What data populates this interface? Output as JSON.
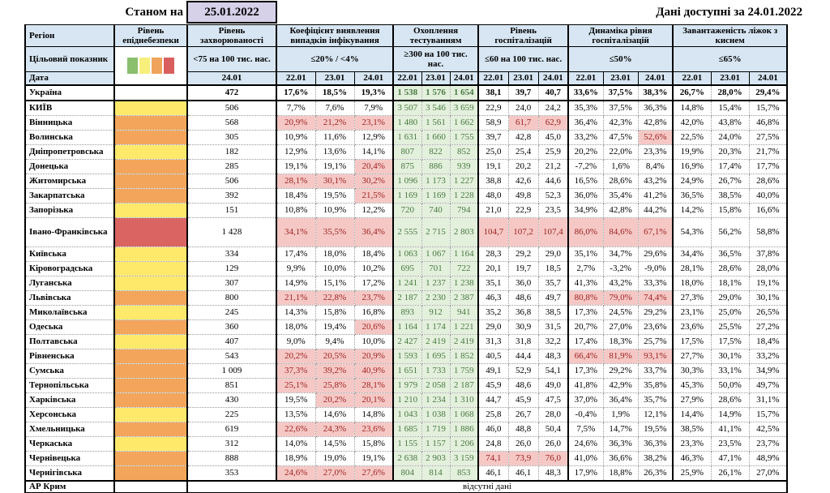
{
  "topbar": {
    "as_of_label": "Станом на",
    "as_of_date": "25.01.2022",
    "available_label": "Дані доступні за",
    "available_date": "24.01.2022"
  },
  "header": {
    "region": "Регіон",
    "target_row_label": "Цільовий показник",
    "date_row_label": "Дата",
    "epidemic_title": "Рівень епіднебезпеки",
    "morbidity": {
      "title": "Рівень захворюваності",
      "target": "<75 на 100 тис. нас.",
      "date": "24.01"
    },
    "groups": [
      {
        "key": "coef",
        "title": "Коефіцієнт виявлення випадків інфікування",
        "target": "≤20% / <4%"
      },
      {
        "key": "test",
        "title": "Охоплення тестуванням",
        "target": "≥300 на 100 тис. нас."
      },
      {
        "key": "hosp",
        "title": "Рівень госпіталізацій",
        "target": "≤60 на 100 тис. нас."
      },
      {
        "key": "dyn",
        "title": "Динаміка рівня госпіталізацій",
        "target": "≤50%"
      },
      {
        "key": "beds",
        "title": "Завантаженість ліжок з киснем",
        "target": "≤65%"
      }
    ],
    "dates": [
      "22.01",
      "23.01",
      "24.01"
    ]
  },
  "legend_colors": [
    "#8abf6e",
    "#f6ef7c",
    "#f0a35b",
    "#d95f5f"
  ],
  "level_colors": {
    "yellow": "#ffe96b",
    "orange": "#f3a65b",
    "red": "#d96461",
    "none": "#ffffff"
  },
  "no_data_text": "відсутні дані",
  "rows": [
    {
      "region": "Україна",
      "level": "none",
      "bold": true,
      "morbidity": "472",
      "coef": [
        "17,6%",
        "18,5%",
        "19,3%"
      ],
      "coef_hl": [
        0,
        0,
        0
      ],
      "test": [
        "1 538",
        "1 576",
        "1 654"
      ],
      "hosp": [
        "38,1",
        "39,7",
        "40,7"
      ],
      "hosp_hl": [
        0,
        0,
        0
      ],
      "dyn": [
        "33,6%",
        "37,5%",
        "38,3%"
      ],
      "dyn_hl": [
        0,
        0,
        0
      ],
      "beds": [
        "26,7%",
        "28,0%",
        "29,4%"
      ]
    },
    {
      "region": "КИЇВ",
      "level": "yellow",
      "morbidity": "506",
      "coef": [
        "7,7%",
        "7,6%",
        "7,9%"
      ],
      "coef_hl": [
        0,
        0,
        0
      ],
      "test": [
        "3 507",
        "3 546",
        "3 659"
      ],
      "hosp": [
        "22,9",
        "24,0",
        "24,2"
      ],
      "hosp_hl": [
        0,
        0,
        0
      ],
      "dyn": [
        "35,3%",
        "37,5%",
        "36,3%"
      ],
      "dyn_hl": [
        0,
        0,
        0
      ],
      "beds": [
        "14,8%",
        "15,4%",
        "15,7%"
      ]
    },
    {
      "region": "Вінницька",
      "level": "orange",
      "morbidity": "568",
      "coef": [
        "20,9%",
        "21,2%",
        "23,1%"
      ],
      "coef_hl": [
        1,
        1,
        1
      ],
      "test": [
        "1 480",
        "1 561",
        "1 662"
      ],
      "hosp": [
        "58,9",
        "61,7",
        "62,9"
      ],
      "hosp_hl": [
        0,
        1,
        1
      ],
      "dyn": [
        "36,4%",
        "42,3%",
        "42,8%"
      ],
      "dyn_hl": [
        0,
        0,
        0
      ],
      "beds": [
        "42,0%",
        "43,8%",
        "46,8%"
      ]
    },
    {
      "region": "Волинська",
      "level": "orange",
      "morbidity": "305",
      "coef": [
        "10,9%",
        "11,6%",
        "12,9%"
      ],
      "coef_hl": [
        0,
        0,
        0
      ],
      "test": [
        "1 631",
        "1 660",
        "1 755"
      ],
      "hosp": [
        "39,7",
        "42,8",
        "45,0"
      ],
      "hosp_hl": [
        0,
        0,
        0
      ],
      "dyn": [
        "33,2%",
        "47,5%",
        "52,6%"
      ],
      "dyn_hl": [
        0,
        0,
        1
      ],
      "beds": [
        "22,5%",
        "24,0%",
        "27,5%"
      ]
    },
    {
      "region": "Дніпропетровська",
      "level": "yellow",
      "morbidity": "182",
      "coef": [
        "12,9%",
        "13,6%",
        "14,1%"
      ],
      "coef_hl": [
        0,
        0,
        0
      ],
      "test": [
        "807",
        "822",
        "852"
      ],
      "hosp": [
        "25,0",
        "25,4",
        "25,9"
      ],
      "hosp_hl": [
        0,
        0,
        0
      ],
      "dyn": [
        "20,2%",
        "22,0%",
        "23,3%"
      ],
      "dyn_hl": [
        0,
        0,
        0
      ],
      "beds": [
        "19,9%",
        "20,3%",
        "21,7%"
      ]
    },
    {
      "region": "Донецька",
      "level": "orange",
      "morbidity": "285",
      "coef": [
        "19,1%",
        "19,1%",
        "20,4%"
      ],
      "coef_hl": [
        0,
        0,
        1
      ],
      "test": [
        "875",
        "886",
        "939"
      ],
      "hosp": [
        "19,1",
        "20,2",
        "21,2"
      ],
      "hosp_hl": [
        0,
        0,
        0
      ],
      "dyn": [
        "-7,2%",
        "1,6%",
        "8,4%"
      ],
      "dyn_hl": [
        0,
        0,
        0
      ],
      "beds": [
        "16,9%",
        "17,4%",
        "17,7%"
      ]
    },
    {
      "region": "Житомирська",
      "level": "orange",
      "morbidity": "506",
      "coef": [
        "28,1%",
        "30,1%",
        "30,2%"
      ],
      "coef_hl": [
        1,
        1,
        1
      ],
      "test": [
        "1 096",
        "1 173",
        "1 227"
      ],
      "hosp": [
        "38,8",
        "42,6",
        "44,6"
      ],
      "hosp_hl": [
        0,
        0,
        0
      ],
      "dyn": [
        "16,5%",
        "28,6%",
        "43,2%"
      ],
      "dyn_hl": [
        0,
        0,
        0
      ],
      "beds": [
        "24,9%",
        "26,7%",
        "28,6%"
      ]
    },
    {
      "region": "Закарпатська",
      "level": "orange",
      "morbidity": "392",
      "coef": [
        "18,4%",
        "19,5%",
        "21,5%"
      ],
      "coef_hl": [
        0,
        0,
        1
      ],
      "test": [
        "1 169",
        "1 169",
        "1 228"
      ],
      "hosp": [
        "48,0",
        "49,8",
        "52,3"
      ],
      "hosp_hl": [
        0,
        0,
        0
      ],
      "dyn": [
        "36,0%",
        "35,4%",
        "41,2%"
      ],
      "dyn_hl": [
        0,
        0,
        0
      ],
      "beds": [
        "36,5%",
        "38,5%",
        "40,0%"
      ]
    },
    {
      "region": "Запорізька",
      "level": "yellow",
      "morbidity": "151",
      "coef": [
        "10,8%",
        "10,9%",
        "12,2%"
      ],
      "coef_hl": [
        0,
        0,
        0
      ],
      "test": [
        "720",
        "740",
        "794"
      ],
      "hosp": [
        "21,0",
        "22,9",
        "23,5"
      ],
      "hosp_hl": [
        0,
        0,
        0
      ],
      "dyn": [
        "34,9%",
        "42,8%",
        "44,2%"
      ],
      "dyn_hl": [
        0,
        0,
        0
      ],
      "beds": [
        "14,2%",
        "15,8%",
        "16,6%"
      ]
    },
    {
      "region": "Івано-Франківська",
      "level": "red",
      "tall": true,
      "morbidity": "1 428",
      "coef": [
        "34,1%",
        "35,5%",
        "36,4%"
      ],
      "coef_hl": [
        1,
        1,
        1
      ],
      "test": [
        "2 555",
        "2 715",
        "2 803"
      ],
      "hosp": [
        "104,7",
        "107,2",
        "107,4"
      ],
      "hosp_hl": [
        1,
        1,
        1
      ],
      "dyn": [
        "86,0%",
        "84,6%",
        "67,1%"
      ],
      "dyn_hl": [
        1,
        1,
        1
      ],
      "beds": [
        "54,3%",
        "56,2%",
        "58,8%"
      ]
    },
    {
      "region": "Київська",
      "level": "yellow",
      "morbidity": "334",
      "coef": [
        "17,4%",
        "18,0%",
        "18,4%"
      ],
      "coef_hl": [
        0,
        0,
        0
      ],
      "test": [
        "1 063",
        "1 067",
        "1 164"
      ],
      "hosp": [
        "28,3",
        "29,2",
        "29,0"
      ],
      "hosp_hl": [
        0,
        0,
        0
      ],
      "dyn": [
        "35,1%",
        "34,7%",
        "29,6%"
      ],
      "dyn_hl": [
        0,
        0,
        0
      ],
      "beds": [
        "34,4%",
        "36,5%",
        "37,8%"
      ]
    },
    {
      "region": "Кіровоградська",
      "level": "yellow",
      "morbidity": "129",
      "coef": [
        "9,9%",
        "10,0%",
        "10,2%"
      ],
      "coef_hl": [
        0,
        0,
        0
      ],
      "test": [
        "695",
        "701",
        "722"
      ],
      "hosp": [
        "20,1",
        "19,7",
        "18,5"
      ],
      "hosp_hl": [
        0,
        0,
        0
      ],
      "dyn": [
        "2,7%",
        "-3,2%",
        "-9,0%"
      ],
      "dyn_hl": [
        0,
        0,
        0
      ],
      "beds": [
        "28,1%",
        "28,6%",
        "28,0%"
      ]
    },
    {
      "region": "Луганська",
      "level": "yellow",
      "morbidity": "307",
      "coef": [
        "14,9%",
        "15,1%",
        "17,2%"
      ],
      "coef_hl": [
        0,
        0,
        0
      ],
      "test": [
        "1 241",
        "1 237",
        "1 238"
      ],
      "hosp": [
        "35,1",
        "36,0",
        "35,7"
      ],
      "hosp_hl": [
        0,
        0,
        0
      ],
      "dyn": [
        "41,3%",
        "43,2%",
        "33,3%"
      ],
      "dyn_hl": [
        0,
        0,
        0
      ],
      "beds": [
        "18,0%",
        "18,1%",
        "19,1%"
      ]
    },
    {
      "region": "Львівська",
      "level": "orange",
      "morbidity": "800",
      "coef": [
        "21,1%",
        "22,8%",
        "23,7%"
      ],
      "coef_hl": [
        1,
        1,
        1
      ],
      "test": [
        "2 187",
        "2 230",
        "2 387"
      ],
      "hosp": [
        "46,3",
        "48,6",
        "49,7"
      ],
      "hosp_hl": [
        0,
        0,
        0
      ],
      "dyn": [
        "80,8%",
        "79,0%",
        "74,4%"
      ],
      "dyn_hl": [
        1,
        1,
        1
      ],
      "beds": [
        "27,3%",
        "29,0%",
        "30,1%"
      ]
    },
    {
      "region": "Миколаївська",
      "level": "yellow",
      "morbidity": "245",
      "coef": [
        "14,3%",
        "15,8%",
        "16,8%"
      ],
      "coef_hl": [
        0,
        0,
        0
      ],
      "test": [
        "893",
        "912",
        "941"
      ],
      "hosp": [
        "35,2",
        "36,8",
        "38,5"
      ],
      "hosp_hl": [
        0,
        0,
        0
      ],
      "dyn": [
        "17,3%",
        "24,5%",
        "29,2%"
      ],
      "dyn_hl": [
        0,
        0,
        0
      ],
      "beds": [
        "23,1%",
        "25,0%",
        "26,5%"
      ]
    },
    {
      "region": "Одеська",
      "level": "orange",
      "morbidity": "360",
      "coef": [
        "18,0%",
        "19,4%",
        "20,6%"
      ],
      "coef_hl": [
        0,
        0,
        1
      ],
      "test": [
        "1 164",
        "1 174",
        "1 221"
      ],
      "hosp": [
        "29,0",
        "30,9",
        "31,5"
      ],
      "hosp_hl": [
        0,
        0,
        0
      ],
      "dyn": [
        "20,7%",
        "27,0%",
        "23,6%"
      ],
      "dyn_hl": [
        0,
        0,
        0
      ],
      "beds": [
        "23,6%",
        "25,5%",
        "27,2%"
      ]
    },
    {
      "region": "Полтавська",
      "level": "yellow",
      "morbidity": "407",
      "coef": [
        "9,0%",
        "9,4%",
        "10,0%"
      ],
      "coef_hl": [
        0,
        0,
        0
      ],
      "test": [
        "2 427",
        "2 419",
        "2 419"
      ],
      "hosp": [
        "31,3",
        "31,8",
        "32,2"
      ],
      "hosp_hl": [
        0,
        0,
        0
      ],
      "dyn": [
        "17,4%",
        "18,3%",
        "25,7%"
      ],
      "dyn_hl": [
        0,
        0,
        0
      ],
      "beds": [
        "17,5%",
        "17,5%",
        "18,4%"
      ]
    },
    {
      "region": "Рівненська",
      "level": "orange",
      "morbidity": "543",
      "coef": [
        "20,2%",
        "20,5%",
        "20,9%"
      ],
      "coef_hl": [
        1,
        1,
        1
      ],
      "test": [
        "1 593",
        "1 695",
        "1 852"
      ],
      "hosp": [
        "40,5",
        "44,4",
        "48,3"
      ],
      "hosp_hl": [
        0,
        0,
        0
      ],
      "dyn": [
        "66,4%",
        "81,9%",
        "93,1%"
      ],
      "dyn_hl": [
        1,
        1,
        1
      ],
      "beds": [
        "27,7%",
        "30,1%",
        "33,2%"
      ]
    },
    {
      "region": "Сумська",
      "level": "orange",
      "morbidity": "1 009",
      "coef": [
        "37,3%",
        "39,2%",
        "40,9%"
      ],
      "coef_hl": [
        1,
        1,
        1
      ],
      "test": [
        "1 651",
        "1 733",
        "1 759"
      ],
      "hosp": [
        "49,1",
        "52,9",
        "54,1"
      ],
      "hosp_hl": [
        0,
        0,
        0
      ],
      "dyn": [
        "17,3%",
        "29,2%",
        "33,7%"
      ],
      "dyn_hl": [
        0,
        0,
        0
      ],
      "beds": [
        "30,3%",
        "33,1%",
        "34,9%"
      ]
    },
    {
      "region": "Тернопільська",
      "level": "orange",
      "morbidity": "851",
      "coef": [
        "25,1%",
        "25,8%",
        "28,1%"
      ],
      "coef_hl": [
        1,
        1,
        1
      ],
      "test": [
        "1 979",
        "2 058",
        "2 187"
      ],
      "hosp": [
        "45,9",
        "48,6",
        "49,0"
      ],
      "hosp_hl": [
        0,
        0,
        0
      ],
      "dyn": [
        "41,8%",
        "42,9%",
        "35,8%"
      ],
      "dyn_hl": [
        0,
        0,
        0
      ],
      "beds": [
        "45,3%",
        "50,0%",
        "49,7%"
      ]
    },
    {
      "region": "Харківська",
      "level": "orange",
      "morbidity": "430",
      "coef": [
        "19,5%",
        "20,2%",
        "20,1%"
      ],
      "coef_hl": [
        0,
        1,
        1
      ],
      "test": [
        "1 210",
        "1 234",
        "1 310"
      ],
      "hosp": [
        "44,7",
        "45,9",
        "47,5"
      ],
      "hosp_hl": [
        0,
        0,
        0
      ],
      "dyn": [
        "37,0%",
        "36,4%",
        "35,7%"
      ],
      "dyn_hl": [
        0,
        0,
        0
      ],
      "beds": [
        "27,9%",
        "28,6%",
        "31,1%"
      ]
    },
    {
      "region": "Херсонська",
      "level": "yellow",
      "morbidity": "225",
      "coef": [
        "13,5%",
        "14,6%",
        "14,8%"
      ],
      "coef_hl": [
        0,
        0,
        0
      ],
      "test": [
        "1 043",
        "1 038",
        "1 068"
      ],
      "hosp": [
        "25,8",
        "26,7",
        "28,0"
      ],
      "hosp_hl": [
        0,
        0,
        0
      ],
      "dyn": [
        "-0,4%",
        "1,9%",
        "12,1%"
      ],
      "dyn_hl": [
        0,
        0,
        0
      ],
      "beds": [
        "14,4%",
        "14,9%",
        "15,7%"
      ]
    },
    {
      "region": "Хмельницька",
      "level": "orange",
      "morbidity": "619",
      "coef": [
        "22,6%",
        "24,3%",
        "23,6%"
      ],
      "coef_hl": [
        1,
        1,
        1
      ],
      "test": [
        "1 685",
        "1 719",
        "1 886"
      ],
      "hosp": [
        "46,0",
        "48,8",
        "50,4"
      ],
      "hosp_hl": [
        0,
        0,
        0
      ],
      "dyn": [
        "7,5%",
        "14,7%",
        "19,5%"
      ],
      "dyn_hl": [
        0,
        0,
        0
      ],
      "beds": [
        "38,5%",
        "41,1%",
        "42,5%"
      ]
    },
    {
      "region": "Черкаська",
      "level": "yellow",
      "morbidity": "312",
      "coef": [
        "14,0%",
        "14,5%",
        "15,8%"
      ],
      "coef_hl": [
        0,
        0,
        0
      ],
      "test": [
        "1 155",
        "1 157",
        "1 206"
      ],
      "hosp": [
        "24,8",
        "26,0",
        "26,0"
      ],
      "hosp_hl": [
        0,
        0,
        0
      ],
      "dyn": [
        "24,6%",
        "36,3%",
        "36,3%"
      ],
      "dyn_hl": [
        0,
        0,
        0
      ],
      "beds": [
        "23,3%",
        "23,5%",
        "23,7%"
      ]
    },
    {
      "region": "Чернівецька",
      "level": "orange",
      "morbidity": "888",
      "coef": [
        "18,9%",
        "19,0%",
        "19,1%"
      ],
      "coef_hl": [
        0,
        0,
        0
      ],
      "test": [
        "2 638",
        "2 903",
        "3 159"
      ],
      "hosp": [
        "74,1",
        "73,9",
        "76,0"
      ],
      "hosp_hl": [
        1,
        1,
        1
      ],
      "dyn": [
        "41,0%",
        "36,6%",
        "38,2%"
      ],
      "dyn_hl": [
        0,
        0,
        0
      ],
      "beds": [
        "46,3%",
        "47,1%",
        "48,9%"
      ]
    },
    {
      "region": "Чернігівська",
      "level": "orange",
      "morbidity": "353",
      "coef": [
        "24,6%",
        "27,0%",
        "27,6%"
      ],
      "coef_hl": [
        1,
        1,
        1
      ],
      "test": [
        "804",
        "814",
        "853"
      ],
      "hosp": [
        "46,1",
        "46,1",
        "48,3"
      ],
      "hosp_hl": [
        0,
        0,
        0
      ],
      "dyn": [
        "17,9%",
        "18,8%",
        "26,3%"
      ],
      "dyn_hl": [
        0,
        0,
        0
      ],
      "beds": [
        "25,9%",
        "26,1%",
        "27,0%"
      ]
    },
    {
      "region": "АР Крим",
      "level": "none",
      "cut": true,
      "no_data": true
    }
  ]
}
